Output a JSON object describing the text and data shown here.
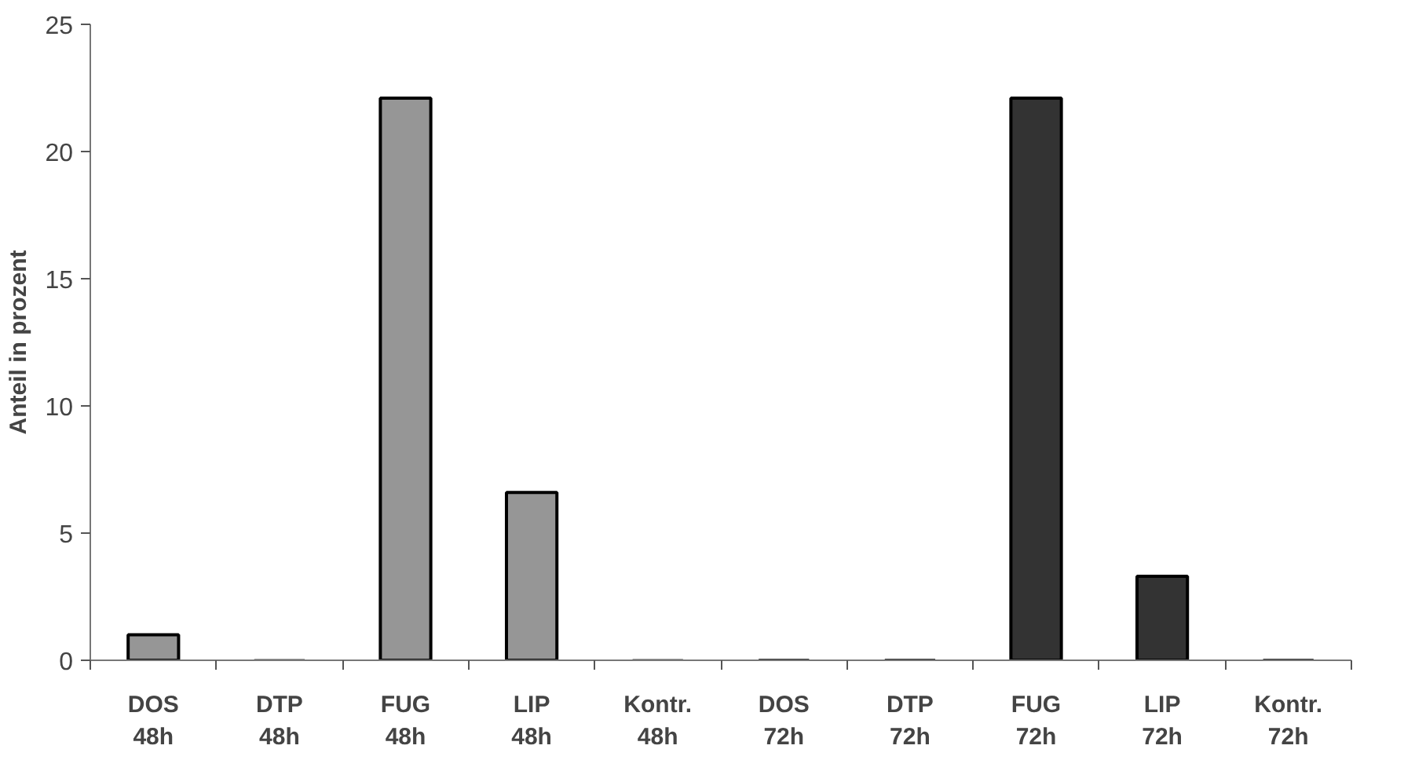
{
  "chart_data": {
    "type": "bar",
    "ylabel": "Anteil in prozent",
    "categories": [
      "DOS\n48h",
      "DTP\n48h",
      "FUG\n48h",
      "LIP\n48h",
      "Kontr.\n48h",
      "DOS\n72h",
      "DTP\n72h",
      "FUG\n72h",
      "LIP\n72h",
      "Kontr.\n72h"
    ],
    "values": [
      1.0,
      0,
      22.1,
      6.6,
      0,
      0,
      0,
      22.1,
      3.3,
      0
    ],
    "colors": [
      "#969696",
      "#969696",
      "#969696",
      "#969696",
      "#969696",
      "#333333",
      "#333333",
      "#333333",
      "#333333",
      "#333333"
    ],
    "ylim": [
      0,
      25
    ],
    "yticks": [
      0,
      5,
      10,
      15,
      20,
      25
    ],
    "grid": false
  }
}
